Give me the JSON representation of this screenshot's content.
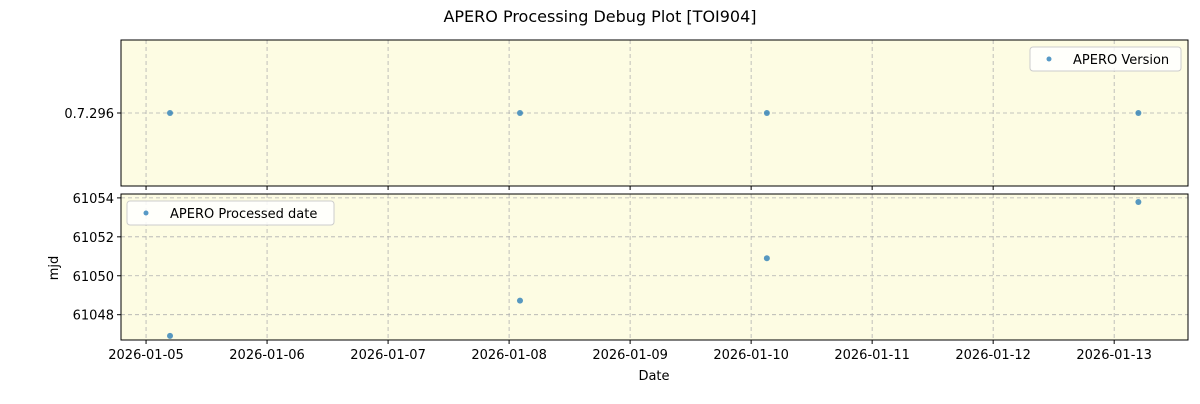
{
  "chart_data": [
    {
      "type": "scatter",
      "title": "APERO Processing Debug Plot [TOI904]",
      "panel": "top",
      "xlabel": "",
      "ylabel": "",
      "legend": {
        "label": "APERO Version",
        "placement": "top-right"
      },
      "x": [
        "2026-01-05T04:45",
        "2026-01-08T02:10",
        "2026-01-10T03:10",
        "2026-01-13T04:45"
      ],
      "x_days": [
        5.198,
        8.09,
        10.13,
        13.2
      ],
      "y_category": "0.7.296",
      "yticks": [
        "0.7.296"
      ],
      "color": "#1f77b4",
      "background": "#fdfce3"
    },
    {
      "type": "scatter",
      "panel": "bottom",
      "xlabel": "Date",
      "ylabel": "mjd",
      "legend": {
        "label": "APERO Processed date",
        "placement": "top-left"
      },
      "x_days": [
        5.198,
        8.09,
        10.13,
        13.2
      ],
      "y": [
        61046.91,
        61048.72,
        61050.9,
        61053.79
      ],
      "ylim": [
        61046.7,
        61054.2
      ],
      "yticks": [
        "61048",
        "61050",
        "61052",
        "61054"
      ],
      "xlim_days": [
        4.793,
        13.61
      ],
      "xticks": [
        "2026-01-05",
        "2026-01-06",
        "2026-01-07",
        "2026-01-08",
        "2026-01-09",
        "2026-01-10",
        "2026-01-11",
        "2026-01-12",
        "2026-01-13"
      ],
      "color": "#1f77b4",
      "background": "#fdfce3"
    }
  ]
}
